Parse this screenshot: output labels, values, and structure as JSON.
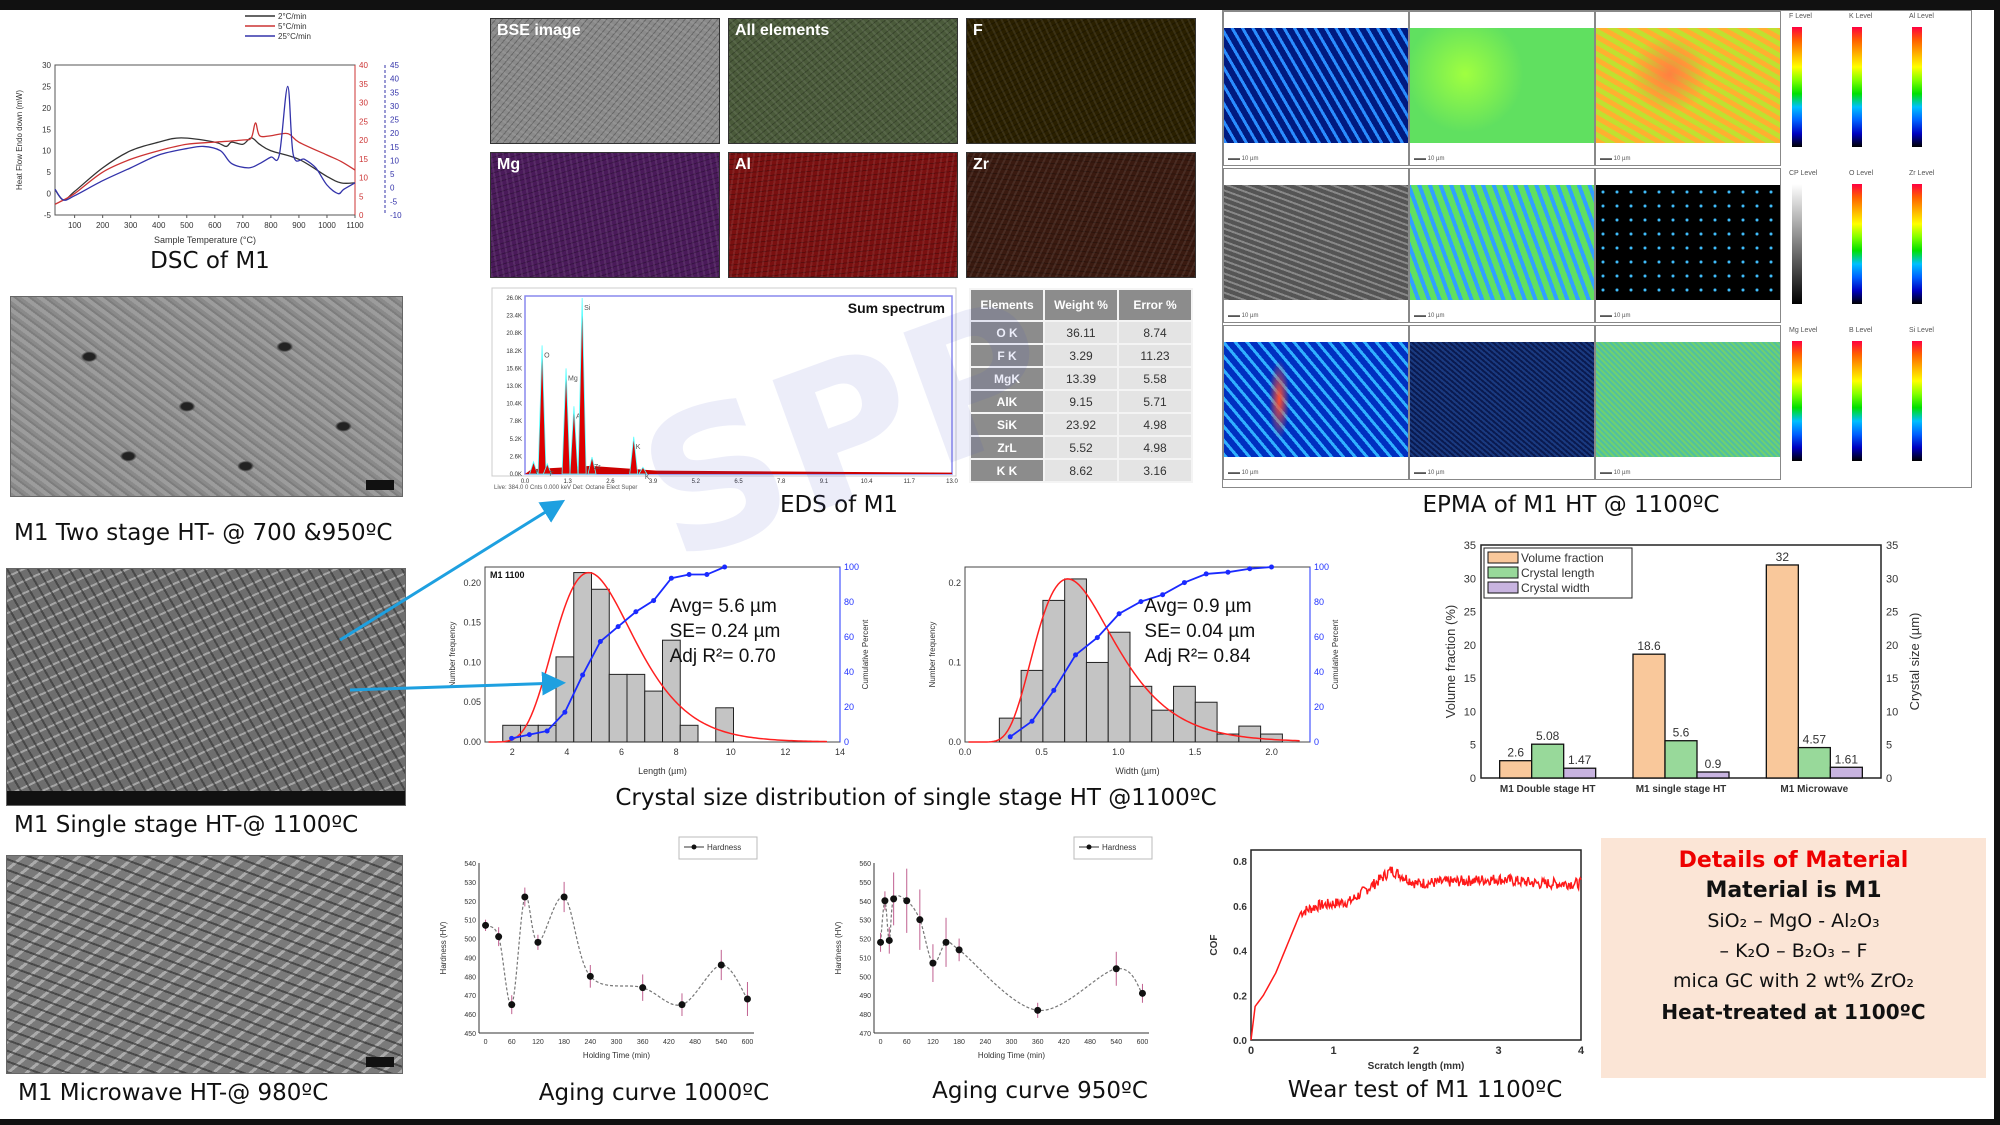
{
  "captions": {
    "dsc": "DSC of M1",
    "sem_two_stage": "M1 Two stage HT- @ 700 &950ºC",
    "sem_single": "M1 Single stage HT-@ 1100ºC",
    "sem_microwave": "M1 Microwave HT-@ 980ºC",
    "eds": "EDS of M1",
    "epma": "EPMA of M1 HT @ 1100ºC",
    "csd": "Crystal size distribution of single stage HT @1100ºC",
    "aging1000": "Aging curve 1000ºC",
    "aging950": "Aging curve 950ºC",
    "wear": "Wear test of M1 1100ºC"
  },
  "eds_maps": [
    {
      "label": "BSE image",
      "color": "#8a8a8a"
    },
    {
      "label": "All elements",
      "color": "#4a5a3a"
    },
    {
      "label": "F",
      "color": "#2a2000"
    },
    {
      "label": "Mg",
      "color": "#4a1a5a"
    },
    {
      "label": "Al",
      "color": "#7a1010"
    },
    {
      "label": "Zr",
      "color": "#3a1a10"
    }
  ],
  "eds_spectrum": {
    "title": "Sum spectrum",
    "footer": "Live: 384.0   0 Cnts   0.000 keV   Det: Octane Elect Super",
    "x_ticks": [
      "0.0",
      "1.3",
      "2.6",
      "3.9",
      "5.2",
      "6.5",
      "7.8",
      "9.1",
      "10.4",
      "11.7",
      "13.0"
    ],
    "y_ticks": [
      "0.0K",
      "2.6K",
      "5.2K",
      "7.8K",
      "10.4K",
      "13.0K",
      "15.6K",
      "18.2K",
      "20.8K",
      "23.4K",
      "26.0K"
    ],
    "peaks": [
      {
        "label": "K",
        "kev": 0.26,
        "counts": 1800
      },
      {
        "label": "O",
        "kev": 0.52,
        "counts": 19000
      },
      {
        "label": "F",
        "kev": 0.68,
        "counts": 1500
      },
      {
        "label": "Mg",
        "kev": 1.25,
        "counts": 15600
      },
      {
        "label": "Al",
        "kev": 1.49,
        "counts": 10000
      },
      {
        "label": "Si",
        "kev": 1.74,
        "counts": 26000
      },
      {
        "label": "Zr",
        "kev": 2.04,
        "counts": 2500
      },
      {
        "label": "K",
        "kev": 3.31,
        "counts": 5500
      },
      {
        "label": "K",
        "kev": 3.59,
        "counts": 1000
      }
    ]
  },
  "eds_table": {
    "headers": [
      "Elements",
      "Weight %",
      "Error %"
    ],
    "rows": [
      [
        "O K",
        "36.11",
        "8.74"
      ],
      [
        "F K",
        "3.29",
        "11.23"
      ],
      [
        "MgK",
        "13.39",
        "5.58"
      ],
      [
        "AlK",
        "9.15",
        "5.71"
      ],
      [
        "SiK",
        "23.92",
        "4.98"
      ],
      [
        "ZrL",
        "5.52",
        "4.98"
      ],
      [
        "K K",
        "8.62",
        "3.16"
      ]
    ]
  },
  "epma": {
    "scale_label": "10 µm",
    "legend_header": "Level",
    "legend_elements": [
      "F",
      "K",
      "Al",
      "CP",
      "O",
      "Zr",
      "Mg",
      "B",
      "Si"
    ]
  },
  "details": {
    "title": "Details of Material",
    "material": "Material is M1",
    "formula1": "SiO₂ – MgO - Al₂O₃",
    "formula2": "– K₂O – B₂O₃ – F",
    "description": "mica GC with 2 wt% ZrO₂",
    "heat": "Heat-treated at 1100ºC"
  },
  "chart_data": [
    {
      "id": "dsc",
      "type": "line",
      "xlabel": "Sample Temperature (°C)",
      "ylabel": "Heat Flow Endo down (mW)",
      "xlim": [
        30,
        1100
      ],
      "x_ticks": [
        100,
        200,
        300,
        400,
        500,
        600,
        700,
        800,
        900,
        1000,
        1100
      ],
      "ylim": [
        -5,
        30
      ],
      "y_ticks": [
        -5,
        0,
        5,
        10,
        15,
        20,
        25,
        30
      ],
      "y2_ticks": [
        0,
        5,
        10,
        15,
        20,
        25,
        30,
        35,
        40
      ],
      "y3_ticks": [
        -10,
        -5,
        0,
        5,
        10,
        15,
        20,
        25,
        30,
        35,
        40,
        45
      ],
      "legend": "top-right",
      "series": [
        {
          "name": "2°C/min",
          "color": "#333333",
          "points": [
            [
              30,
              1
            ],
            [
              60,
              -1.5
            ],
            [
              100,
              0.5
            ],
            [
              200,
              6
            ],
            [
              300,
              10
            ],
            [
              400,
              12
            ],
            [
              480,
              13
            ],
            [
              600,
              12
            ],
            [
              640,
              11
            ],
            [
              660,
              12
            ],
            [
              700,
              11.5
            ],
            [
              730,
              13
            ],
            [
              760,
              11.5
            ],
            [
              800,
              10
            ],
            [
              900,
              8
            ],
            [
              1000,
              4
            ],
            [
              1050,
              2.5
            ],
            [
              1100,
              2.5
            ]
          ]
        },
        {
          "name": "5°C/min",
          "color": "#cc3333",
          "points": [
            [
              30,
              -2.5
            ],
            [
              60,
              -1.5
            ],
            [
              100,
              0
            ],
            [
              200,
              5
            ],
            [
              300,
              8
            ],
            [
              400,
              10
            ],
            [
              500,
              11.5
            ],
            [
              600,
              12
            ],
            [
              700,
              12.5
            ],
            [
              730,
              13
            ],
            [
              745,
              16.5
            ],
            [
              760,
              13.5
            ],
            [
              800,
              13.5
            ],
            [
              860,
              14
            ],
            [
              900,
              12
            ],
            [
              1000,
              9
            ],
            [
              1050,
              7.5
            ],
            [
              1100,
              5.5
            ]
          ]
        },
        {
          "name": "25°C/min",
          "color": "#3333aa",
          "points": [
            [
              30,
              1
            ],
            [
              60,
              -1.5
            ],
            [
              100,
              -0.5
            ],
            [
              200,
              3
            ],
            [
              300,
              6
            ],
            [
              400,
              9
            ],
            [
              500,
              10.5
            ],
            [
              560,
              11
            ],
            [
              620,
              10
            ],
            [
              660,
              7
            ],
            [
              720,
              6
            ],
            [
              760,
              7
            ],
            [
              800,
              8.5
            ],
            [
              830,
              9
            ],
            [
              860,
              25
            ],
            [
              880,
              9
            ],
            [
              920,
              8
            ],
            [
              960,
              6
            ],
            [
              1000,
              2
            ],
            [
              1040,
              0
            ],
            [
              1060,
              1
            ],
            [
              1100,
              2.5
            ]
          ]
        }
      ]
    },
    {
      "id": "length_hist",
      "type": "bar",
      "title": "M1 1100",
      "xlabel": "Length (µm)",
      "ylabel": "Number frequency",
      "y2label": "Cumulative Percent",
      "xlim": [
        1,
        14
      ],
      "x_ticks": [
        2,
        4,
        6,
        8,
        10,
        12,
        14
      ],
      "ylim": [
        0,
        0.22
      ],
      "y_ticks": [
        "0.00",
        "0.05",
        "0.10",
        "0.15",
        "0.20"
      ],
      "y2_ticks": [
        0,
        20,
        40,
        60,
        80,
        100
      ],
      "bin_start": 1.65,
      "bin_width": 0.65,
      "values": [
        0.021,
        0.021,
        0.021,
        0.107,
        0.213,
        0.192,
        0.085,
        0.085,
        0.064,
        0.128,
        0.021,
        0,
        0.043
      ],
      "fit": {
        "mode": 4.8,
        "peak": 0.213,
        "sigma": 0.3
      },
      "stats": [
        "Avg= 5.6 µm",
        "SE= 0.24 µm",
        "Adj R²= 0.70"
      ]
    },
    {
      "id": "width_hist",
      "type": "bar",
      "xlabel": "Width (µm)",
      "ylabel": "Number frequency",
      "y2label": "Cumulative Percent",
      "xlim": [
        0,
        2.25
      ],
      "x_ticks": [
        "0.0",
        "0.5",
        "1.0",
        "1.5",
        "2.0"
      ],
      "ylim": [
        0,
        0.22
      ],
      "y_ticks": [
        "0.0",
        "0.1",
        "0.2"
      ],
      "y2_ticks": [
        0,
        20,
        40,
        60,
        80,
        100
      ],
      "bin_start": 0.224,
      "bin_width": 0.142,
      "values": [
        0.03,
        0.09,
        0.178,
        0.205,
        0.1,
        0.138,
        0.07,
        0.04,
        0.07,
        0.05,
        0.01,
        0.02,
        0.01
      ],
      "fit": {
        "mode": 0.67,
        "peak": 0.205,
        "sigma": 0.38
      },
      "stats": [
        "Avg= 0.9 µm",
        "SE= 0.04 µm",
        "Adj R²= 0.84"
      ]
    },
    {
      "id": "phase_bars",
      "type": "bar",
      "categories": [
        "M1 Double stage HT",
        "M1 single stage HT",
        "M1 Microwave"
      ],
      "ylabel": "Volume fraction (%)",
      "y2label": "Crystal size (µm)",
      "ylim": [
        0,
        35
      ],
      "y_ticks": [
        0,
        5,
        10,
        15,
        20,
        25,
        30,
        35
      ],
      "legend": "top-left",
      "series": [
        {
          "name": "Volume fraction",
          "color": "#f9c89b",
          "values": [
            2.6,
            18.6,
            32
          ],
          "labels": [
            "2.6",
            "18.6",
            "32"
          ]
        },
        {
          "name": "Crystal length",
          "color": "#98d99a",
          "values": [
            5.08,
            5.6,
            4.57
          ],
          "labels": [
            "5.08",
            "5.6",
            "4.57"
          ]
        },
        {
          "name": "Crystal width",
          "color": "#c8b4e0",
          "values": [
            1.47,
            0.9,
            1.61
          ],
          "labels": [
            "1.47",
            "0.9",
            "1.61"
          ]
        }
      ]
    },
    {
      "id": "aging1000",
      "type": "line",
      "xlabel": "Holding Time (min)",
      "ylabel": "Hardness (HV)",
      "legend_label": "Hardness",
      "xlim": [
        -15,
        615
      ],
      "x_ticks": [
        0,
        60,
        120,
        180,
        240,
        300,
        360,
        420,
        480,
        540,
        600
      ],
      "ylim": [
        450,
        540
      ],
      "y_ticks": [
        450,
        460,
        470,
        480,
        490,
        500,
        510,
        520,
        530,
        540
      ],
      "x": [
        0,
        30,
        60,
        90,
        120,
        180,
        240,
        360,
        450,
        540,
        600
      ],
      "y": [
        507,
        501,
        465,
        522,
        498,
        522,
        480,
        474,
        465,
        486,
        468
      ],
      "err": [
        3,
        5,
        5,
        5,
        4,
        8,
        6,
        7,
        6,
        8,
        9
      ]
    },
    {
      "id": "aging950",
      "type": "line",
      "xlabel": "Holding Time (min)",
      "ylabel": "Hardness (HV)",
      "legend_label": "Hardness",
      "xlim": [
        -15,
        615
      ],
      "x_ticks": [
        0,
        60,
        120,
        180,
        240,
        300,
        360,
        420,
        480,
        540,
        600
      ],
      "ylim": [
        470,
        560
      ],
      "y_ticks": [
        470,
        480,
        490,
        500,
        510,
        520,
        530,
        540,
        550,
        560
      ],
      "x": [
        0,
        10,
        20,
        30,
        60,
        90,
        120,
        150,
        180,
        360,
        540,
        600
      ],
      "y": [
        518,
        540,
        519,
        541,
        540,
        530,
        507,
        518,
        514,
        482,
        504,
        491
      ],
      "err": [
        5,
        5,
        7,
        14,
        17,
        16,
        10,
        13,
        6,
        4,
        9,
        5
      ]
    },
    {
      "id": "wear",
      "type": "line",
      "xlabel": "Scratch length (mm)",
      "ylabel": "COF",
      "xlim": [
        0,
        4
      ],
      "x_ticks": [
        0,
        1,
        2,
        3,
        4
      ],
      "ylim": [
        0,
        0.85
      ],
      "y_ticks": [
        "0.0",
        "0.2",
        "0.4",
        "0.6",
        "0.8"
      ],
      "color": "#ff1a1a",
      "points": [
        [
          0,
          0
        ],
        [
          0.05,
          0.15
        ],
        [
          0.15,
          0.2
        ],
        [
          0.3,
          0.3
        ],
        [
          0.6,
          0.57
        ],
        [
          0.8,
          0.6
        ],
        [
          1.2,
          0.62
        ],
        [
          1.5,
          0.7
        ],
        [
          1.7,
          0.76
        ],
        [
          2,
          0.7
        ],
        [
          2.5,
          0.71
        ],
        [
          3,
          0.72
        ],
        [
          3.5,
          0.7
        ],
        [
          4,
          0.7
        ]
      ]
    }
  ]
}
